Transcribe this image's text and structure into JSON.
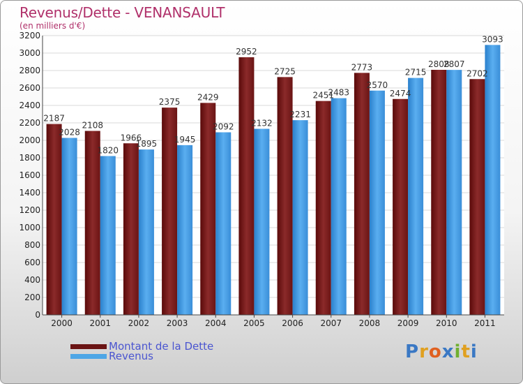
{
  "header": {
    "title": "Revenus/Dette - VENANSAULT",
    "subtitle": "(en milliers d'€)"
  },
  "legend": {
    "items": [
      {
        "label": "Montant de la Dette",
        "color": "#7a1f1f"
      },
      {
        "label": "Revenus",
        "color": "#4ea6e6"
      }
    ]
  },
  "logo": {
    "text": "Proxiti",
    "letters": [
      "P",
      "r",
      "o",
      "x",
      "i",
      "t",
      "i"
    ],
    "colors": [
      "#3a78c4",
      "#e0a020",
      "#e06020",
      "#3a78c4",
      "#70b030",
      "#e0a020",
      "#3a78c4"
    ]
  },
  "chart_data": {
    "type": "bar",
    "title": "Revenus/Dette - VENANSAULT",
    "subtitle": "(en milliers d'€)",
    "categories": [
      "2000",
      "2001",
      "2002",
      "2003",
      "2004",
      "2005",
      "2006",
      "2007",
      "2008",
      "2009",
      "2010",
      "2011"
    ],
    "series": [
      {
        "name": "Montant de la Dette",
        "color": "#7a1f1f",
        "values": [
          2187,
          2108,
          1966,
          2375,
          2429,
          2952,
          2725,
          2451,
          2773,
          2474,
          2808,
          2702
        ]
      },
      {
        "name": "Revenus",
        "color": "#4ea6e6",
        "values": [
          2028,
          1820,
          1895,
          1945,
          2092,
          2132,
          2231,
          2483,
          2570,
          2715,
          2807,
          3093
        ]
      }
    ],
    "ylim": [
      0,
      3200
    ],
    "yticks": [
      0,
      200,
      400,
      600,
      800,
      1000,
      1200,
      1400,
      1600,
      1800,
      2000,
      2200,
      2400,
      2600,
      2800,
      3000,
      3200
    ],
    "grid": true,
    "legend_position": "bottom-left"
  }
}
